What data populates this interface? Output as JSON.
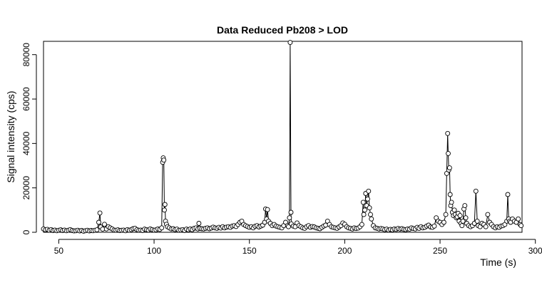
{
  "chart_data": {
    "type": "scatter",
    "title": "Data Reduced Pb208 > LOD",
    "xlabel": "Time (s)",
    "ylabel": "Signal intensity (cps)",
    "xlim": [
      42,
      293
    ],
    "ylim": [
      0,
      86000
    ],
    "x_ticks": [
      50,
      100,
      150,
      200,
      250,
      300
    ],
    "y_ticks": [
      0,
      20000,
      40000,
      60000,
      80000
    ],
    "x_tick_labels": [
      "50",
      "100",
      "150",
      "200",
      "250",
      "300"
    ],
    "y_tick_labels": [
      "0",
      "20000",
      "40000",
      "60000",
      "80000"
    ],
    "grid": false,
    "marker": "open-circle",
    "connected": true,
    "series": [
      {
        "points": [
          [
            42,
            1500
          ],
          [
            43,
            1100
          ],
          [
            44,
            1300
          ],
          [
            45,
            900
          ],
          [
            46,
            1200
          ],
          [
            47,
            800
          ],
          [
            48,
            1000
          ],
          [
            49,
            700
          ],
          [
            50,
            900
          ],
          [
            51,
            1100
          ],
          [
            52,
            800
          ],
          [
            53,
            1000
          ],
          [
            54,
            700
          ],
          [
            55,
            900
          ],
          [
            56,
            1200
          ],
          [
            57,
            800
          ],
          [
            58,
            600
          ],
          [
            59,
            700
          ],
          [
            60,
            900
          ],
          [
            61,
            600
          ],
          [
            62,
            800
          ],
          [
            63,
            500
          ],
          [
            64,
            700
          ],
          [
            65,
            900
          ],
          [
            66,
            600
          ],
          [
            67,
            800
          ],
          [
            68,
            700
          ],
          [
            69,
            900
          ],
          [
            70,
            1100
          ],
          [
            71,
            4500
          ],
          [
            71.6,
            8700
          ],
          [
            72,
            2400
          ],
          [
            73,
            1400
          ],
          [
            74,
            3600
          ],
          [
            75,
            1500
          ],
          [
            76,
            2500
          ],
          [
            77,
            2000
          ],
          [
            78,
            1500
          ],
          [
            79,
            1000
          ],
          [
            80,
            900
          ],
          [
            81,
            1100
          ],
          [
            82,
            800
          ],
          [
            83,
            900
          ],
          [
            84,
            1000
          ],
          [
            85,
            700
          ],
          [
            86,
            1200
          ],
          [
            87,
            900
          ],
          [
            88,
            1200
          ],
          [
            89,
            1600
          ],
          [
            90,
            1800
          ],
          [
            91,
            1200
          ],
          [
            92,
            900
          ],
          [
            93,
            1000
          ],
          [
            94,
            800
          ],
          [
            95,
            1400
          ],
          [
            96,
            1200
          ],
          [
            97,
            1000
          ],
          [
            98,
            1500
          ],
          [
            99,
            1200
          ],
          [
            100,
            900
          ],
          [
            101,
            1100
          ],
          [
            102,
            1500
          ],
          [
            103,
            1300
          ],
          [
            104,
            2000
          ],
          [
            104.5,
            31500
          ],
          [
            104.8,
            33500
          ],
          [
            105.1,
            32500
          ],
          [
            105.4,
            10000
          ],
          [
            105.7,
            12500
          ],
          [
            106,
            5000
          ],
          [
            106.5,
            3600
          ],
          [
            107,
            2500
          ],
          [
            108,
            2000
          ],
          [
            109,
            1500
          ],
          [
            110,
            1600
          ],
          [
            111,
            1200
          ],
          [
            112,
            1400
          ],
          [
            113,
            900
          ],
          [
            114,
            1000
          ],
          [
            115,
            1200
          ],
          [
            116,
            800
          ],
          [
            117,
            1400
          ],
          [
            118,
            1100
          ],
          [
            119,
            1500
          ],
          [
            120,
            1200
          ],
          [
            121,
            1800
          ],
          [
            122,
            2000
          ],
          [
            123,
            1500
          ],
          [
            123.5,
            4000
          ],
          [
            124,
            1800
          ],
          [
            125,
            1600
          ],
          [
            126,
            1500
          ],
          [
            127,
            1800
          ],
          [
            128,
            2000
          ],
          [
            129,
            1600
          ],
          [
            130,
            1900
          ],
          [
            131,
            2300
          ],
          [
            132,
            2000
          ],
          [
            133,
            1800
          ],
          [
            134,
            2200
          ],
          [
            135,
            1900
          ],
          [
            136,
            2500
          ],
          [
            137,
            2000
          ],
          [
            138,
            2300
          ],
          [
            139,
            2500
          ],
          [
            140,
            2200
          ],
          [
            141,
            2800
          ],
          [
            142,
            3000
          ],
          [
            143,
            2600
          ],
          [
            144,
            3500
          ],
          [
            145,
            4500
          ],
          [
            146,
            5000
          ],
          [
            147,
            3500
          ],
          [
            148,
            3000
          ],
          [
            149,
            2600
          ],
          [
            150,
            2200
          ],
          [
            151,
            2500
          ],
          [
            152,
            2000
          ],
          [
            153,
            2700
          ],
          [
            154,
            3000
          ],
          [
            155,
            2400
          ],
          [
            156,
            2800
          ],
          [
            157,
            3200
          ],
          [
            158,
            4500
          ],
          [
            158.5,
            10500
          ],
          [
            159,
            6000
          ],
          [
            159.5,
            10200
          ],
          [
            160,
            5000
          ],
          [
            161,
            4000
          ],
          [
            162,
            3000
          ],
          [
            163,
            3500
          ],
          [
            164,
            2800
          ],
          [
            165,
            2500
          ],
          [
            166,
            2200
          ],
          [
            167,
            2000
          ],
          [
            168,
            3000
          ],
          [
            169,
            4500
          ],
          [
            170,
            3000
          ],
          [
            170.5,
            2500
          ],
          [
            171,
            6500
          ],
          [
            171.4,
            85500
          ],
          [
            171.8,
            9000
          ],
          [
            172,
            3800
          ],
          [
            173,
            2800
          ],
          [
            174,
            2500
          ],
          [
            175,
            4200
          ],
          [
            176,
            3000
          ],
          [
            177,
            2500
          ],
          [
            178,
            2000
          ],
          [
            179,
            1800
          ],
          [
            180,
            2500
          ],
          [
            181,
            3000
          ],
          [
            182,
            2200
          ],
          [
            183,
            2600
          ],
          [
            184,
            2400
          ],
          [
            185,
            2000
          ],
          [
            186,
            1800
          ],
          [
            187,
            1600
          ],
          [
            188,
            2200
          ],
          [
            189,
            2800
          ],
          [
            190,
            3200
          ],
          [
            191,
            5000
          ],
          [
            192,
            3500
          ],
          [
            193,
            2500
          ],
          [
            194,
            2200
          ],
          [
            195,
            2000
          ],
          [
            196,
            1800
          ],
          [
            197,
            2400
          ],
          [
            198,
            3000
          ],
          [
            199,
            4200
          ],
          [
            200,
            3600
          ],
          [
            201,
            2500
          ],
          [
            202,
            2000
          ],
          [
            203,
            1800
          ],
          [
            204,
            1500
          ],
          [
            205,
            2000
          ],
          [
            206,
            1700
          ],
          [
            207,
            1900
          ],
          [
            208,
            2500
          ],
          [
            209,
            3500
          ],
          [
            209.7,
            13500
          ],
          [
            210,
            8000
          ],
          [
            210.5,
            10000
          ],
          [
            211,
            17500
          ],
          [
            211.5,
            12000
          ],
          [
            212,
            15000
          ],
          [
            212.5,
            18500
          ],
          [
            213,
            11000
          ],
          [
            213.5,
            8000
          ],
          [
            214,
            6000
          ],
          [
            215,
            3000
          ],
          [
            216,
            2000
          ],
          [
            217,
            1800
          ],
          [
            218,
            1500
          ],
          [
            219,
            1700
          ],
          [
            220,
            1500
          ],
          [
            221,
            1200
          ],
          [
            222,
            1400
          ],
          [
            223,
            1000
          ],
          [
            224,
            1300
          ],
          [
            225,
            1100
          ],
          [
            226,
            1500
          ],
          [
            227,
            1300
          ],
          [
            228,
            1700
          ],
          [
            229,
            1400
          ],
          [
            230,
            1600
          ],
          [
            231,
            1300
          ],
          [
            232,
            1200
          ],
          [
            233,
            1500
          ],
          [
            234,
            1400
          ],
          [
            235,
            2000
          ],
          [
            236,
            1700
          ],
          [
            237,
            1500
          ],
          [
            238,
            2200
          ],
          [
            239,
            1800
          ],
          [
            240,
            2500
          ],
          [
            241,
            2000
          ],
          [
            242,
            2200
          ],
          [
            243,
            2800
          ],
          [
            244,
            3200
          ],
          [
            245,
            2400
          ],
          [
            246,
            2200
          ],
          [
            247,
            2800
          ],
          [
            248,
            6500
          ],
          [
            249,
            5000
          ],
          [
            250,
            4500
          ],
          [
            251,
            3500
          ],
          [
            252,
            4500
          ],
          [
            253,
            8000
          ],
          [
            253.5,
            26500
          ],
          [
            254,
            44500
          ],
          [
            254.3,
            35500
          ],
          [
            254.6,
            28000
          ],
          [
            255,
            29000
          ],
          [
            255.3,
            17000
          ],
          [
            255.6,
            12000
          ],
          [
            256,
            13500
          ],
          [
            256.5,
            9000
          ],
          [
            257,
            7500
          ],
          [
            257.5,
            10000
          ],
          [
            258,
            8000
          ],
          [
            258.5,
            6500
          ],
          [
            259,
            7000
          ],
          [
            259.5,
            8500
          ],
          [
            260,
            5000
          ],
          [
            260.5,
            7500
          ],
          [
            261,
            4000
          ],
          [
            261.5,
            3000
          ],
          [
            262,
            5000
          ],
          [
            262.5,
            10500
          ],
          [
            263,
            12000
          ],
          [
            263.5,
            6500
          ],
          [
            264,
            4000
          ],
          [
            265,
            3000
          ],
          [
            266,
            2500
          ],
          [
            267,
            3000
          ],
          [
            268,
            4000
          ],
          [
            268.8,
            18500
          ],
          [
            269.5,
            5000
          ],
          [
            270,
            3000
          ],
          [
            271,
            2500
          ],
          [
            272,
            4000
          ],
          [
            273,
            3500
          ],
          [
            274,
            2500
          ],
          [
            275,
            8000
          ],
          [
            276,
            4500
          ],
          [
            277,
            3500
          ],
          [
            278,
            2500
          ],
          [
            279,
            2000
          ],
          [
            280,
            2500
          ],
          [
            281,
            2200
          ],
          [
            282,
            2800
          ],
          [
            283,
            3000
          ],
          [
            284,
            3500
          ],
          [
            285,
            5000
          ],
          [
            285.5,
            17000
          ],
          [
            286,
            6000
          ],
          [
            286.5,
            5000
          ],
          [
            287,
            4500
          ],
          [
            288,
            6000
          ],
          [
            289,
            5000
          ],
          [
            290,
            4500
          ],
          [
            291,
            6000
          ],
          [
            292,
            3500
          ],
          [
            292.5,
            3000
          ]
        ]
      }
    ]
  }
}
